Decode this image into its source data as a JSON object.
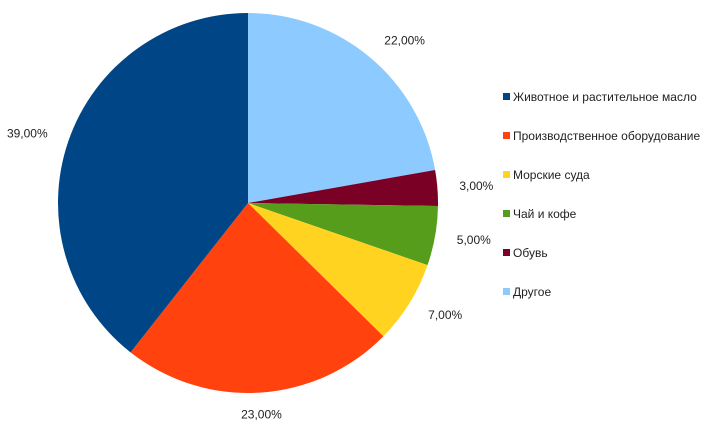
{
  "chart_data": {
    "type": "pie",
    "title": "",
    "start_angle_deg": 0,
    "direction": "clockwise",
    "legend_position": "right",
    "slices": [
      {
        "label": "Другое",
        "value": 22,
        "value_label": "22,00%",
        "color": "#8ccaff"
      },
      {
        "label": "Обувь",
        "value": 3,
        "value_label": "3,00%",
        "color": "#7a0025"
      },
      {
        "label": "Чай и кофе",
        "value": 5,
        "value_label": "5,00%",
        "color": "#579d1c"
      },
      {
        "label": "Морские суда",
        "value": 7,
        "value_label": "7,00%",
        "color": "#ffd320"
      },
      {
        "label": "Производственное оборудование",
        "value": 23,
        "value_label": "23,00%",
        "color": "#ff420e"
      },
      {
        "label": "Животное и растительное масло",
        "value": 39,
        "value_label": "39,00%",
        "color": "#004586"
      }
    ],
    "legend_order": [
      "Животное и растительное масло",
      "Производственное оборудование",
      "Морские суда",
      "Чай и кофе",
      "Обувь",
      "Другое"
    ]
  }
}
